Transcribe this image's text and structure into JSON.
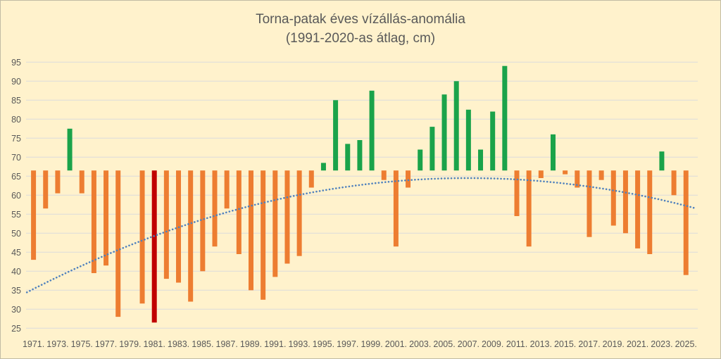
{
  "chart_data": {
    "type": "bar",
    "title": "Torna-patak éves vízállás-anomália",
    "subtitle": "(1991-2020-as átlag, cm)",
    "xlabel": "",
    "ylabel": "",
    "ylim": [
      25,
      95
    ],
    "y_ticks": [
      25,
      30,
      35,
      40,
      45,
      50,
      55,
      60,
      65,
      70,
      75,
      80,
      85,
      90,
      95
    ],
    "x_tick_labels": [
      "1971.",
      "1973.",
      "1975.",
      "1977.",
      "1979.",
      "1981.",
      "1983.",
      "1985.",
      "1987.",
      "1989.",
      "1991.",
      "1993.",
      "1995.",
      "1997.",
      "1999.",
      "2001.",
      "2003.",
      "2005.",
      "2007.",
      "2009.",
      "2011.",
      "2013.",
      "2015.",
      "2017.",
      "2019.",
      "2021.",
      "2023.",
      "2025."
    ],
    "baseline": 66.5,
    "grid": true,
    "legend": false,
    "categories": [
      1971,
      1972,
      1973,
      1974,
      1975,
      1976,
      1977,
      1978,
      1979,
      1980,
      1981,
      1982,
      1983,
      1984,
      1985,
      1986,
      1987,
      1988,
      1989,
      1990,
      1991,
      1992,
      1993,
      1994,
      1995,
      1996,
      1997,
      1998,
      1999,
      2000,
      2001,
      2002,
      2003,
      2004,
      2005,
      2006,
      2007,
      2008,
      2009,
      2010,
      2011,
      2012,
      2013,
      2014,
      2015,
      2016,
      2017,
      2018,
      2019,
      2020,
      2021,
      2022,
      2023,
      2024,
      2025
    ],
    "values": [
      43,
      56.5,
      60.5,
      77.5,
      60.5,
      39.5,
      41.5,
      28,
      null,
      31.5,
      26.5,
      38,
      37,
      32,
      40,
      46.5,
      56.5,
      44.5,
      35,
      32.5,
      38.5,
      42,
      44,
      62,
      68.5,
      85,
      73.5,
      74.5,
      87.5,
      64,
      46.5,
      62,
      72,
      78,
      86.5,
      90,
      82.5,
      72,
      82,
      94,
      54.5,
      46.5,
      64.5,
      76,
      65.5,
      62,
      49,
      64,
      52,
      50,
      46,
      44.5,
      71.5,
      60,
      39
    ],
    "highlight_year": 1981,
    "colors": {
      "above_baseline": "#1AA34A",
      "below_baseline": "#ED7D31",
      "highlight": "#C00000",
      "trend": "#4F81BD",
      "gridline": "#DBDBDB",
      "text": "#595959",
      "background": "#FFF2CC"
    },
    "trendline": {
      "style": "dotted",
      "fit": "polynomial-2",
      "peak_year": 2007,
      "peak_value": 64.5,
      "curvature": 0.0225,
      "start_year": 1970.45,
      "end_year": 2025.9
    }
  }
}
